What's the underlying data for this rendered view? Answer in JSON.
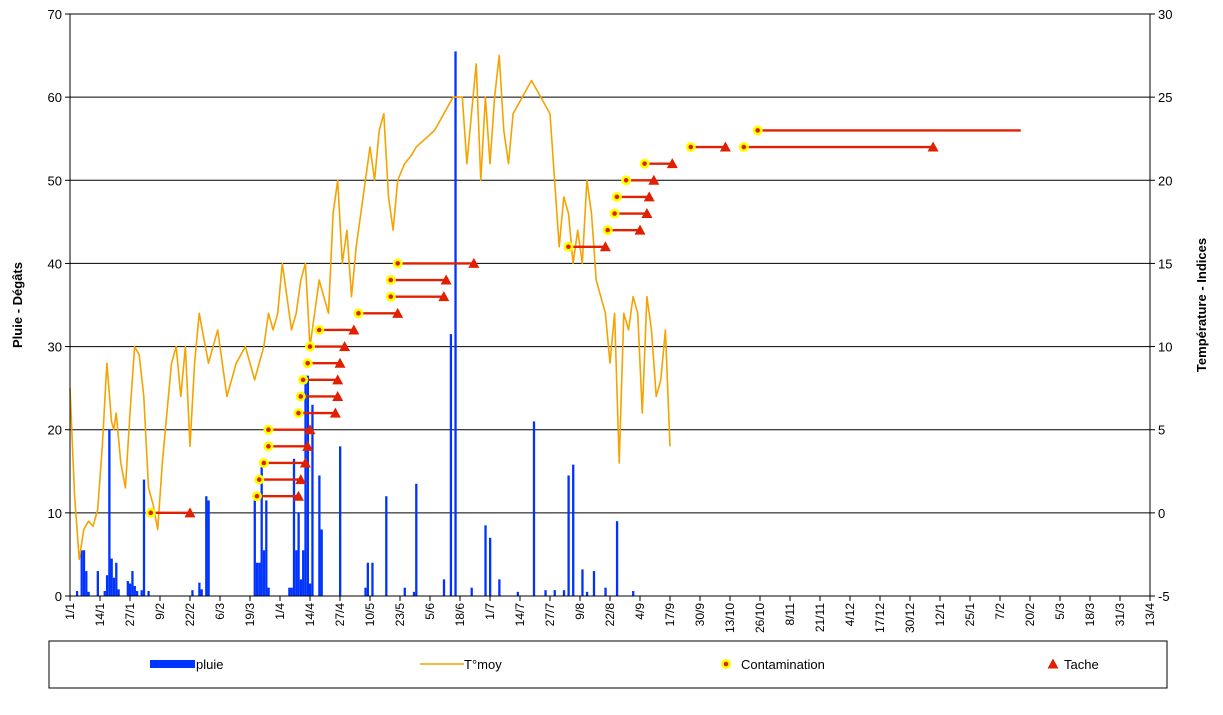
{
  "chart_data": {
    "type": "combo",
    "title": "",
    "y_left": {
      "label": "Pluie - Dégâts",
      "min": 0,
      "max": 70,
      "step": 10,
      "ticks": [
        "0",
        "10",
        "20",
        "30",
        "40",
        "50",
        "60",
        "70"
      ]
    },
    "y_right": {
      "label": "Température - Indices",
      "min": -5,
      "max": 30,
      "step": 5,
      "ticks": [
        "-5",
        "0",
        "5",
        "10",
        "15",
        "20",
        "25",
        "30"
      ]
    },
    "x_axis": {
      "tick_labels": [
        "1/1",
        "14/1",
        "27/1",
        "9/2",
        "22/2",
        "6/3",
        "19/3",
        "1/4",
        "14/4",
        "27/4",
        "10/5",
        "23/5",
        "5/6",
        "18/6",
        "1/7",
        "14/7",
        "27/7",
        "9/8",
        "22/8",
        "4/9",
        "17/9",
        "30/9",
        "13/10",
        "26/10",
        "8/11",
        "21/11",
        "4/12",
        "17/12",
        "30/12",
        "12/1",
        "25/1",
        "7/2",
        "20/2",
        "5/3",
        "18/3",
        "31/3",
        "13/4"
      ],
      "tick_interval_days": 13,
      "total_days": 468
    },
    "grid": "horizontal",
    "legend": {
      "position": "bottom",
      "entries": [
        {
          "name": "pluie",
          "symbol": "bar",
          "color": "#0033ff"
        },
        {
          "name": "T°moy",
          "symbol": "line",
          "color": "#f5a300"
        },
        {
          "name": "Contamination",
          "symbol": "circle",
          "color": "#ffff00",
          "center": "#e02000"
        },
        {
          "name": "Tache",
          "symbol": "triangle",
          "color": "#e02000"
        }
      ]
    },
    "colors": {
      "rain": "#0033ff",
      "temp": "#f5a300",
      "event": "#e02000",
      "contamination_fill": "#ffff00"
    },
    "series_rain": {
      "name": "pluie",
      "axis": "left",
      "day": [
        3,
        5,
        6,
        7,
        8,
        12,
        15,
        16,
        17,
        18,
        19,
        20,
        21,
        25,
        26,
        27,
        28,
        29,
        31,
        32,
        34,
        53,
        56,
        57,
        59,
        60,
        80,
        81,
        82,
        83,
        84,
        85,
        86,
        95,
        96,
        97,
        98,
        99,
        100,
        101,
        102,
        103,
        104,
        105,
        108,
        109,
        117,
        128,
        129,
        131,
        137,
        145,
        149,
        150,
        162,
        165,
        167,
        174,
        180,
        182,
        186,
        194,
        201,
        206,
        210,
        214,
        216,
        218,
        222,
        224,
        227,
        232,
        237,
        244
      ],
      "value": [
        0.6,
        5.5,
        5.5,
        3,
        0.5,
        3,
        0.6,
        2.5,
        20,
        4.5,
        2.2,
        4,
        0.8,
        1.8,
        1.5,
        3,
        1.2,
        0.6,
        0.7,
        14,
        0.6,
        0.7,
        1.6,
        0.8,
        12,
        11.5,
        11.5,
        4,
        4,
        15.5,
        5.5,
        11.5,
        1,
        1,
        1,
        16.5,
        5.5,
        10,
        2,
        5.5,
        26.5,
        26.5,
        1.5,
        23,
        14.5,
        8,
        18,
        1,
        4,
        4,
        12,
        1,
        0.5,
        13.5,
        2,
        31.5,
        65.5,
        1,
        8.5,
        7,
        2,
        0.5,
        21,
        0.7,
        0.7,
        0.7,
        14.5,
        15.8,
        3.2,
        0.5,
        3,
        1,
        9,
        0.6
      ]
    },
    "series_temp": {
      "name": "T°moy",
      "axis": "right",
      "day": [
        0,
        2,
        4,
        6,
        8,
        10,
        12,
        14,
        16,
        18,
        19,
        20,
        22,
        24,
        26,
        28,
        30,
        32,
        34,
        36,
        38,
        40,
        42,
        44,
        46,
        48,
        50,
        52,
        54,
        56,
        58,
        60,
        64,
        68,
        72,
        76,
        80,
        84,
        86,
        88,
        90,
        92,
        94,
        96,
        98,
        100,
        102,
        104,
        106,
        108,
        110,
        112,
        114,
        116,
        118,
        120,
        122,
        124,
        126,
        128,
        130,
        132,
        134,
        136,
        138,
        140,
        142,
        145,
        148,
        150,
        154,
        158,
        162,
        166,
        170,
        172,
        174,
        176,
        178,
        180,
        182,
        184,
        186,
        188,
        190,
        192,
        196,
        200,
        204,
        208,
        210,
        212,
        214,
        216,
        218,
        220,
        222,
        224,
        226,
        228,
        230,
        232,
        234,
        236,
        238,
        240,
        242,
        244,
        246,
        248,
        250,
        252,
        254,
        256,
        258,
        260
      ],
      "value": [
        7.5,
        1,
        -2.8,
        -1,
        -0.5,
        -0.8,
        0.2,
        4,
        9,
        5.5,
        5,
        6,
        3,
        1.5,
        6,
        10,
        9.5,
        7,
        1.5,
        0.5,
        -1,
        3,
        6,
        9,
        10,
        7,
        10,
        4,
        9,
        12,
        10.5,
        9,
        11,
        7,
        9,
        10,
        8,
        10,
        12,
        11,
        12,
        15,
        13,
        11,
        12,
        14,
        15,
        10,
        12,
        14,
        13,
        12,
        18,
        20,
        15,
        17,
        13,
        16,
        18,
        20,
        22,
        20,
        23,
        24,
        19,
        17,
        20,
        21,
        21.5,
        22,
        22.5,
        23,
        24,
        25,
        25,
        21,
        24,
        27,
        20,
        25,
        21,
        25,
        27.5,
        23,
        21,
        24,
        25,
        26,
        25,
        24,
        20,
        16,
        19,
        18,
        15,
        17,
        15,
        20,
        18,
        14,
        13,
        12,
        9,
        12,
        3,
        12,
        11,
        13,
        12,
        6,
        13,
        11,
        7,
        8,
        11,
        4,
        6,
        9,
        7,
        1
      ]
    },
    "series_events": [
      {
        "contamination_day": 35,
        "tache_day": 52,
        "value": 0
      },
      {
        "contamination_day": 81,
        "tache_day": 99,
        "value": 1
      },
      {
        "contamination_day": 82,
        "tache_day": 100,
        "value": 2
      },
      {
        "contamination_day": 84,
        "tache_day": 102,
        "value": 3
      },
      {
        "contamination_day": 86,
        "tache_day": 103,
        "value": 4
      },
      {
        "contamination_day": 86,
        "tache_day": 104,
        "value": 5
      },
      {
        "contamination_day": 99,
        "tache_day": 115,
        "value": 6
      },
      {
        "contamination_day": 100,
        "tache_day": 116,
        "value": 7
      },
      {
        "contamination_day": 101,
        "tache_day": 116,
        "value": 8
      },
      {
        "contamination_day": 103,
        "tache_day": 117,
        "value": 9
      },
      {
        "contamination_day": 104,
        "tache_day": 119,
        "value": 10
      },
      {
        "contamination_day": 108,
        "tache_day": 123,
        "value": 11
      },
      {
        "contamination_day": 125,
        "tache_day": 142,
        "value": 12
      },
      {
        "contamination_day": 139,
        "tache_day": 162,
        "value": 13
      },
      {
        "contamination_day": 139,
        "tache_day": 163,
        "value": 14
      },
      {
        "contamination_day": 142,
        "tache_day": 175,
        "value": 15
      },
      {
        "contamination_day": 216,
        "tache_day": 232,
        "value": 16
      },
      {
        "contamination_day": 233,
        "tache_day": 247,
        "value": 17
      },
      {
        "contamination_day": 236,
        "tache_day": 250,
        "value": 18
      },
      {
        "contamination_day": 237,
        "tache_day": 251,
        "value": 19
      },
      {
        "contamination_day": 241,
        "tache_day": 253,
        "value": 20
      },
      {
        "contamination_day": 249,
        "tache_day": 261,
        "value": 21
      },
      {
        "contamination_day": 269,
        "tache_day": 284,
        "value": 22
      },
      {
        "contamination_day": 292,
        "tache_day": 374,
        "value": 22
      },
      {
        "contamination_day": 298,
        "tache_day": 412,
        "value": 23,
        "no_tache": true
      }
    ]
  }
}
